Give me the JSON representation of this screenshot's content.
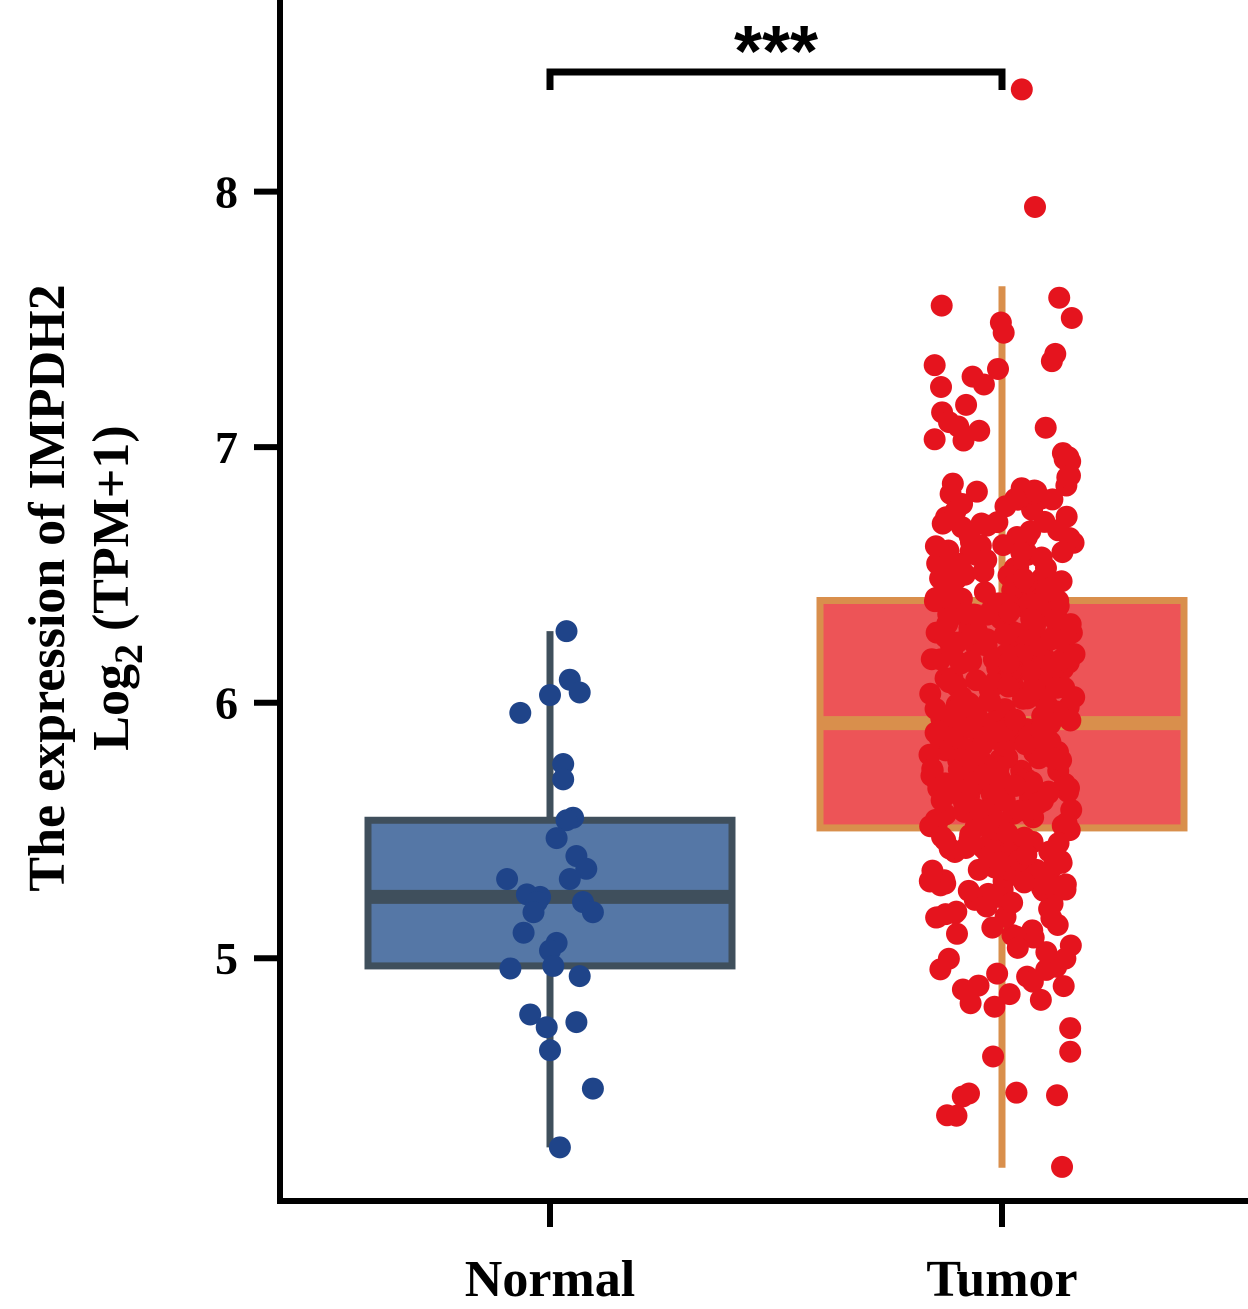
{
  "chart_data": {
    "type": "box",
    "title": "",
    "ylabel_line1": "The expression of IMPDH2",
    "ylabel_line2_base": "Log",
    "ylabel_line2_sub": "2",
    "ylabel_line2_rest": " (TPM+1)",
    "xlabel": "",
    "ylim": [
      4.05,
      8.75
    ],
    "yticks": [
      5,
      6,
      7,
      8
    ],
    "ytick_labels": [
      "5",
      "6",
      "7",
      "8"
    ],
    "categories": [
      "Normal",
      "Tumor"
    ],
    "significance": "***",
    "groups": [
      {
        "name": "Normal",
        "box_fill": "#5577a6",
        "box_edge": "#3f4f5c",
        "point_color": "#1f4489",
        "q1": 4.97,
        "median": 5.24,
        "q3": 5.54,
        "whisker_low": 4.26,
        "whisker_high": 6.28,
        "points": [
          [
            0.05,
            6.28
          ],
          [
            0.06,
            6.09
          ],
          [
            0.09,
            6.04
          ],
          [
            0.0,
            6.03
          ],
          [
            -0.09,
            5.96
          ],
          [
            0.04,
            5.76
          ],
          [
            0.04,
            5.7
          ],
          [
            0.07,
            5.55
          ],
          [
            0.05,
            5.54
          ],
          [
            0.02,
            5.47
          ],
          [
            0.08,
            5.4
          ],
          [
            0.11,
            5.35
          ],
          [
            -0.13,
            5.31
          ],
          [
            0.06,
            5.31
          ],
          [
            -0.07,
            5.25
          ],
          [
            -0.03,
            5.24
          ],
          [
            -0.04,
            5.22
          ],
          [
            0.1,
            5.22
          ],
          [
            0.13,
            5.18
          ],
          [
            -0.05,
            5.18
          ],
          [
            -0.08,
            5.1
          ],
          [
            0.02,
            5.06
          ],
          [
            0.0,
            5.03
          ],
          [
            0.01,
            4.97
          ],
          [
            -0.12,
            4.96
          ],
          [
            0.09,
            4.93
          ],
          [
            -0.06,
            4.78
          ],
          [
            0.08,
            4.75
          ],
          [
            -0.01,
            4.73
          ],
          [
            0.0,
            4.64
          ],
          [
            0.13,
            4.49
          ],
          [
            0.03,
            4.26
          ]
        ]
      },
      {
        "name": "Tumor",
        "box_fill": "#ed5457",
        "box_edge": "#d98f4c",
        "point_color": "#e5141e",
        "q1": 5.51,
        "median": 5.92,
        "q3": 6.4,
        "whisker_low": 4.18,
        "whisker_high": 7.63,
        "outliers": [
          [
            0.06,
            8.4
          ],
          [
            0.1,
            7.94
          ]
        ],
        "n_points": 460
      }
    ]
  }
}
